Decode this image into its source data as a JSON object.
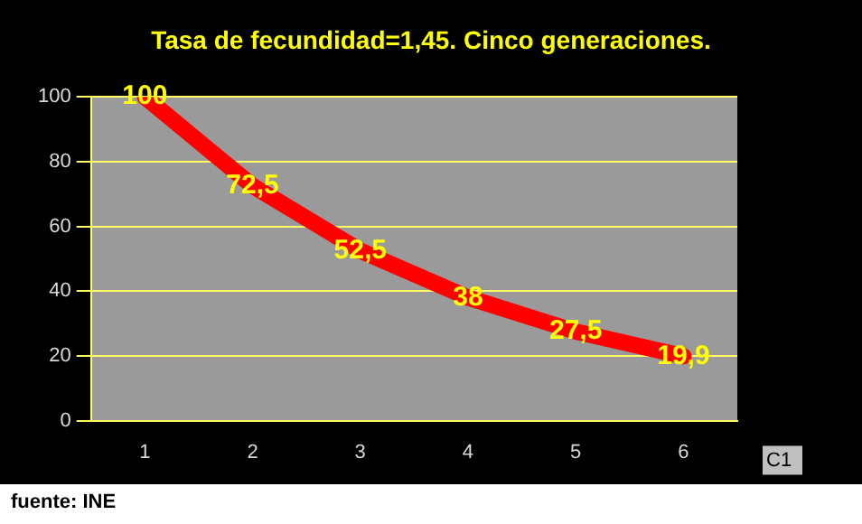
{
  "chart_data": {
    "type": "line",
    "title": "Tasa de fecundidad=1,45. Cinco generaciones.",
    "categories": [
      "1",
      "2",
      "3",
      "4",
      "5",
      "6"
    ],
    "series": [
      {
        "name": "C1",
        "color": "#ff0000",
        "values": [
          100,
          72.5,
          52.5,
          38,
          27.5,
          19.9
        ],
        "value_labels": [
          "100",
          "72,5",
          "52,5",
          "38",
          "27,5",
          "19,9"
        ]
      }
    ],
    "ylim": [
      0,
      100
    ],
    "yticks": [
      0,
      20,
      40,
      60,
      80,
      100
    ],
    "grid": "y",
    "legend": false,
    "marker": "none",
    "line_style": "solid",
    "annotations": [
      "fuente: INE"
    ]
  }
}
